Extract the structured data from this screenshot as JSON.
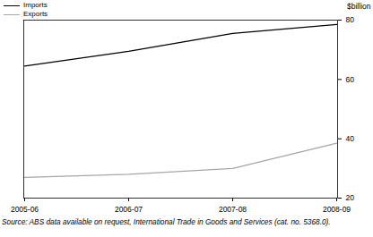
{
  "chart_data": {
    "type": "line",
    "categories": [
      "2005-06",
      "2006-07",
      "2007-08",
      "2008-09"
    ],
    "series": [
      {
        "name": "Imports",
        "color": "#000000",
        "values": [
          64.5,
          69.5,
          75.5,
          78.5
        ]
      },
      {
        "name": "Exports",
        "color": "#a6a6a6",
        "values": [
          27,
          28,
          30,
          38.5
        ]
      }
    ],
    "y_label": "$billion",
    "ylim": [
      20,
      80
    ],
    "yticks": [
      20,
      40,
      60,
      80
    ],
    "legend": "top-left",
    "source": "Source: ABS data available on request, International Trade in Goods and Services (cat. no. 5368.0)."
  }
}
